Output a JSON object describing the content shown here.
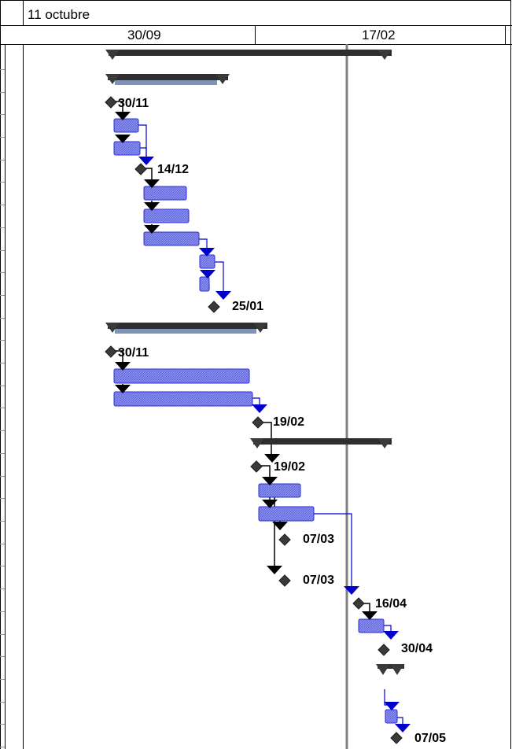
{
  "timescale": {
    "top_label": "11 octubre",
    "bottom_labels": [
      "30/09",
      "17/02"
    ]
  },
  "colors": {
    "task": "#8a8ff0",
    "task_border": "#2b2fd6",
    "summary": "#2e2e2e",
    "progress_line": "#808080",
    "link_black": "#000000",
    "link_blue": "#0000cc",
    "milestone": "#3a3a3a"
  },
  "milestones": [
    {
      "date": "30/11"
    },
    {
      "date": "14/12"
    },
    {
      "date": "25/01"
    },
    {
      "date": "30/11"
    },
    {
      "date": "19/02"
    },
    {
      "date": "19/02"
    },
    {
      "date": "07/03"
    },
    {
      "date": "07/03"
    },
    {
      "date": "16/04"
    },
    {
      "date": "30/04"
    },
    {
      "date": "07/05"
    }
  ]
}
